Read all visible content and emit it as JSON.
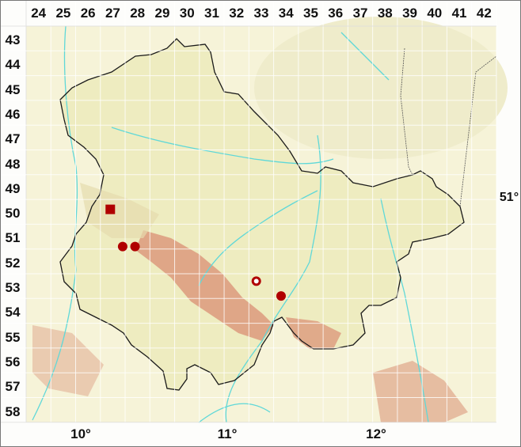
{
  "grid": {
    "columns": [
      "24",
      "25",
      "26",
      "27",
      "28",
      "29",
      "30",
      "31",
      "32",
      "33",
      "34",
      "35",
      "36",
      "37",
      "38",
      "39",
      "40",
      "41",
      "42"
    ],
    "rows": [
      "43",
      "44",
      "45",
      "46",
      "47",
      "48",
      "49",
      "50",
      "51",
      "52",
      "53",
      "54",
      "55",
      "56",
      "57",
      "58"
    ]
  },
  "longitude_labels": [
    {
      "text": "10°",
      "value": 10
    },
    {
      "text": "11°",
      "value": 11
    },
    {
      "text": "12°",
      "value": 12
    }
  ],
  "latitude_label": "51°",
  "colors": {
    "lowland": "#f4f1cf",
    "upland": "#e8d9a8",
    "highland": "#dc8e72",
    "river": "#5fd8d8",
    "border": "#1a1a1a",
    "marker": "#b00000",
    "grid": "#ffffff"
  },
  "markers": [
    {
      "shape": "square",
      "col": 27.4,
      "row": 50.4
    },
    {
      "shape": "circle-filled",
      "col": 27.9,
      "row": 51.9
    },
    {
      "shape": "circle-filled",
      "col": 28.4,
      "row": 51.9
    },
    {
      "shape": "circle-open",
      "col": 33.3,
      "row": 53.3
    },
    {
      "shape": "circle-filled",
      "col": 34.3,
      "row": 53.9
    }
  ]
}
